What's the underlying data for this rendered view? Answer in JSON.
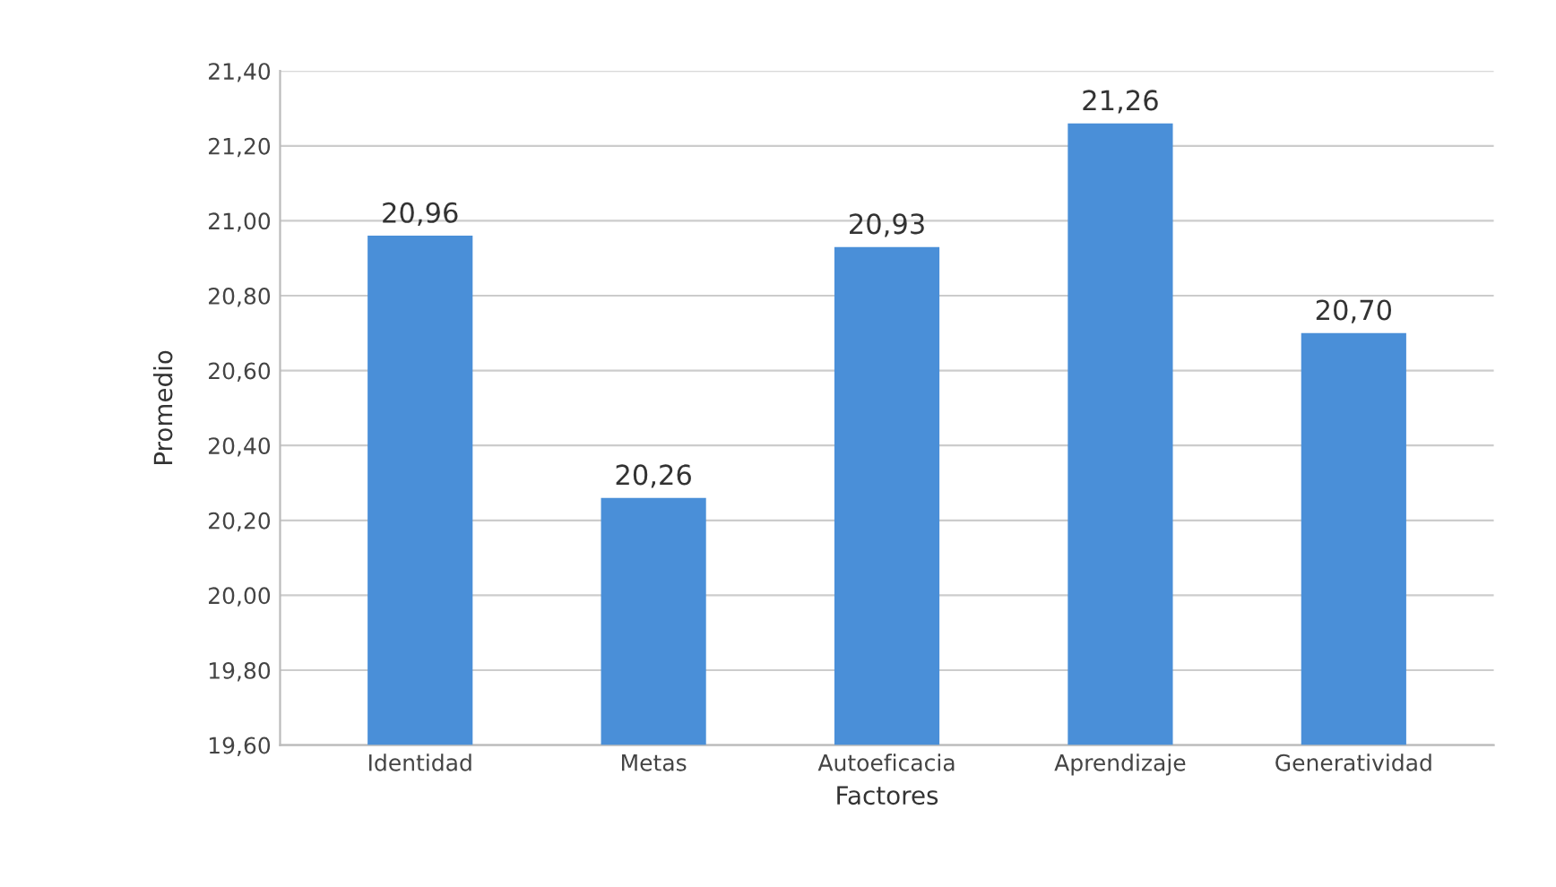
{
  "chart_data": {
    "type": "bar",
    "xlabel": "Factores",
    "ylabel": "Promedio",
    "categories": [
      "Identidad",
      "Metas",
      "Autoeficacia",
      "Aprendizaje",
      "Generatividad"
    ],
    "values": [
      20.96,
      20.26,
      20.93,
      21.26,
      20.7
    ],
    "value_labels": [
      "20,96",
      "20,26",
      "20,93",
      "21,26",
      "20,70"
    ],
    "color": "#4a8fd8",
    "ylim": [
      19.6,
      21.4
    ],
    "yticks": [
      {
        "value": 19.6,
        "label": "19,60"
      },
      {
        "value": 19.8,
        "label": "19,80"
      },
      {
        "value": 20.0,
        "label": "20,00"
      },
      {
        "value": 20.2,
        "label": "20,20"
      },
      {
        "value": 20.4,
        "label": "20,40"
      },
      {
        "value": 20.6,
        "label": "20,60"
      },
      {
        "value": 20.8,
        "label": "20,80"
      },
      {
        "value": 21.0,
        "label": "21,00"
      },
      {
        "value": 21.2,
        "label": "21,20"
      },
      {
        "value": 21.4,
        "label": "21,40"
      }
    ],
    "grid": "y"
  }
}
